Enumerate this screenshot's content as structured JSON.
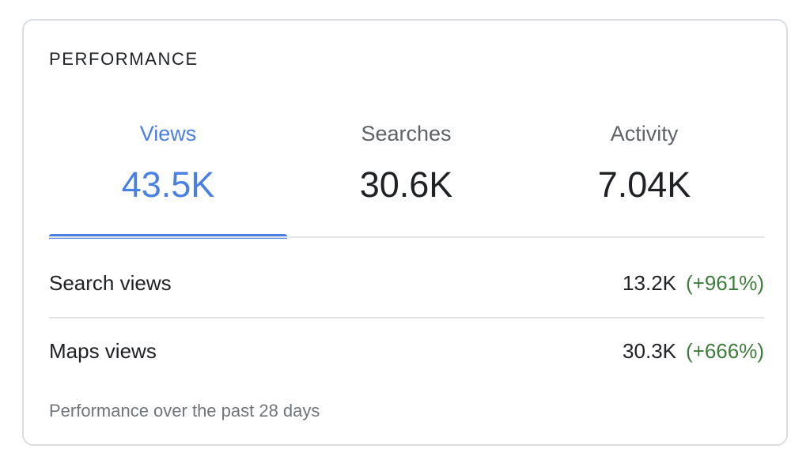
{
  "card": {
    "title": "PERFORMANCE"
  },
  "tabs": [
    {
      "label": "Views",
      "value": "43.5K",
      "active": true
    },
    {
      "label": "Searches",
      "value": "30.6K",
      "active": false
    },
    {
      "label": "Activity",
      "value": "7.04K",
      "active": false
    }
  ],
  "metrics": [
    {
      "label": "Search views",
      "value": "13.2K",
      "change": "(+961%)"
    },
    {
      "label": "Maps views",
      "value": "30.3K",
      "change": "(+666%)"
    }
  ],
  "footer": {
    "text": "Performance over the past 28 days"
  },
  "colors": {
    "accent": "#4a7fe4",
    "positive_change": "#3e7c3c",
    "border": "#dadce0"
  }
}
